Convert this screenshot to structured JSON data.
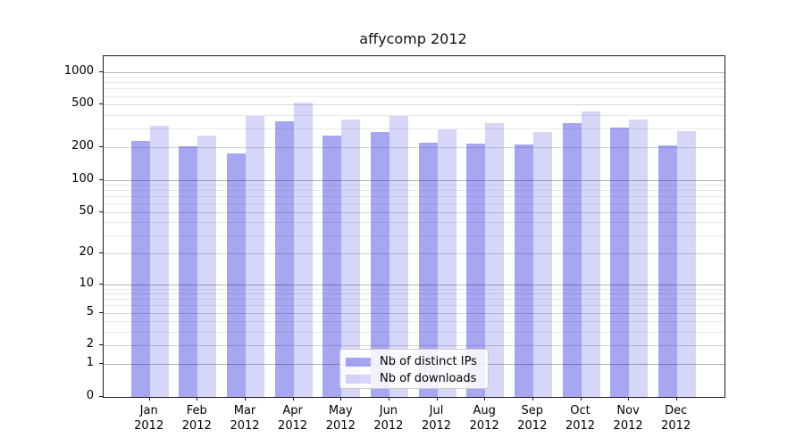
{
  "title": "affycomp 2012",
  "chart_data": {
    "type": "bar",
    "title": "affycomp 2012",
    "categories": [
      "Jan",
      "Feb",
      "Mar",
      "Apr",
      "May",
      "Jun",
      "Jul",
      "Aug",
      "Sep",
      "Oct",
      "Nov",
      "Dec"
    ],
    "category_year": "2012",
    "series": [
      {
        "name": "Nb of distinct IPs",
        "color": "rgba(0,0,216,0.35)",
        "values": [
          232,
          204,
          175,
          347,
          258,
          276,
          221,
          218,
          212,
          337,
          303,
          209
        ]
      },
      {
        "name": "Nb of downloads",
        "color": "rgba(0,0,216,0.16)",
        "values": [
          315,
          256,
          388,
          518,
          366,
          390,
          296,
          336,
          276,
          430,
          366,
          281
        ]
      }
    ],
    "y_ticks": [
      0,
      1,
      2,
      5,
      10,
      20,
      50,
      100,
      200,
      500,
      1000
    ],
    "y_scale": "log1p",
    "y_max_display": 1400,
    "grid": true,
    "legend_position": "lower-center",
    "colors": {
      "major_grid": "#b3b3b3",
      "minor_grid": "#e9e9e9",
      "axis": "#1a1a1a",
      "background": "#ffffff"
    }
  }
}
